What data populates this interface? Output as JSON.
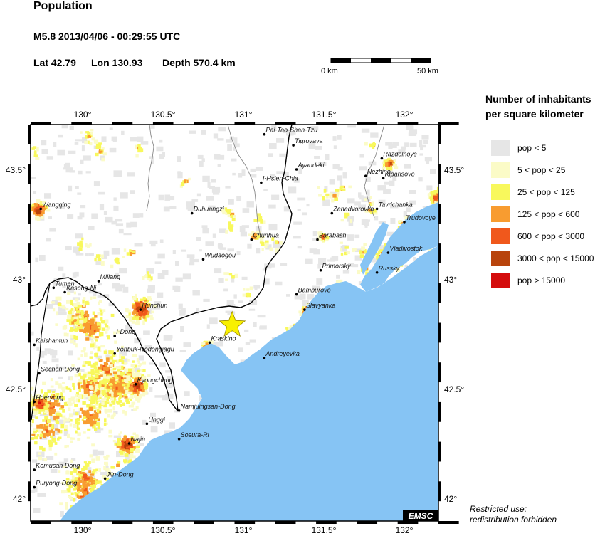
{
  "header": {
    "title": "Population",
    "event": "M5.8  2013/04/06 - 00:29:55 UTC",
    "lat": "Lat 42.79",
    "lon": "Lon 130.93",
    "depth": "Depth 570.4 km"
  },
  "scale_bar": {
    "left_label": "0 km",
    "right_label": "50 km"
  },
  "axes": {
    "lon_ticks": [
      "130°",
      "130.5°",
      "131°",
      "131.5°",
      "132°"
    ],
    "lat_ticks": [
      "43.5°",
      "43°",
      "42.5°",
      "42°"
    ]
  },
  "epicenter": {
    "lat": 42.79,
    "lon": 130.93,
    "marker": "star-icon",
    "color": "#f8f000"
  },
  "colors": {
    "sea": "#86c4f4",
    "land": "#ffffff",
    "border": "#000000",
    "river": "#888888"
  },
  "places": [
    {
      "name": "Pai-Tao-Shan-Tzu",
      "lon": 131.13,
      "lat": 43.66
    },
    {
      "name": "Tigrovaya",
      "lon": 131.31,
      "lat": 43.61
    },
    {
      "name": "Razdolnoye",
      "lon": 131.86,
      "lat": 43.55
    },
    {
      "name": "Ayandeki",
      "lon": 131.33,
      "lat": 43.5
    },
    {
      "name": "I-Hsien-Chia",
      "lon": 131.11,
      "lat": 43.44
    },
    {
      "name": "Nezhino",
      "lon": 131.76,
      "lat": 43.47
    },
    {
      "name": "Kiparisovo",
      "lon": 131.87,
      "lat": 43.46
    },
    {
      "name": "Wangqing",
      "lon": 129.74,
      "lat": 43.32
    },
    {
      "name": "Duhuangzi",
      "lon": 130.68,
      "lat": 43.3
    },
    {
      "name": "Zanadvorovka",
      "lon": 131.55,
      "lat": 43.3
    },
    {
      "name": "Tavrichanka",
      "lon": 131.83,
      "lat": 43.32
    },
    {
      "name": "Trudovoye",
      "lon": 132.0,
      "lat": 43.26
    },
    {
      "name": "Chunhua",
      "lon": 131.05,
      "lat": 43.18
    },
    {
      "name": "Barabash",
      "lon": 131.46,
      "lat": 43.18
    },
    {
      "name": "Vladivostok",
      "lon": 131.9,
      "lat": 43.12
    },
    {
      "name": "Wudaogou",
      "lon": 130.75,
      "lat": 43.09
    },
    {
      "name": "Primorsky",
      "lon": 131.48,
      "lat": 43.04
    },
    {
      "name": "Russky",
      "lon": 131.83,
      "lat": 43.03
    },
    {
      "name": "Mijiang",
      "lon": 130.1,
      "lat": 42.99
    },
    {
      "name": "Tumen",
      "lon": 129.82,
      "lat": 42.96
    },
    {
      "name": "Kasong-Ni",
      "lon": 129.89,
      "lat": 42.94
    },
    {
      "name": "Bamburovo",
      "lon": 131.33,
      "lat": 42.93
    },
    {
      "name": "Hunchun",
      "lon": 130.36,
      "lat": 42.86
    },
    {
      "name": "Slavyanka",
      "lon": 131.38,
      "lat": 42.86
    },
    {
      "name": "I-Dong",
      "lon": 130.2,
      "lat": 42.74
    },
    {
      "name": "Kraskino",
      "lon": 130.79,
      "lat": 42.71
    },
    {
      "name": "Kaishantun",
      "lon": 129.7,
      "lat": 42.7
    },
    {
      "name": "Yonbuk-Nodongjagu",
      "lon": 130.2,
      "lat": 42.66
    },
    {
      "name": "Andreyevka",
      "lon": 131.13,
      "lat": 42.64
    },
    {
      "name": "Sechon-Dong",
      "lon": 129.73,
      "lat": 42.57
    },
    {
      "name": "Kyongchung",
      "lon": 130.33,
      "lat": 42.52
    },
    {
      "name": "Hoeryong",
      "lon": 129.7,
      "lat": 42.44
    },
    {
      "name": "Namjuingsan-Dong",
      "lon": 130.6,
      "lat": 42.4
    },
    {
      "name": "Unggi",
      "lon": 130.4,
      "lat": 42.34
    },
    {
      "name": "Sosura-Ri",
      "lon": 130.6,
      "lat": 42.27
    },
    {
      "name": "Najin",
      "lon": 130.29,
      "lat": 42.25
    },
    {
      "name": "Komusan Dong",
      "lon": 129.7,
      "lat": 42.13
    },
    {
      "name": "Jiin-Dong",
      "lon": 130.14,
      "lat": 42.09
    },
    {
      "name": "Puryong-Dong",
      "lon": 129.7,
      "lat": 42.05
    }
  ],
  "legend": {
    "title_line1": "Number of inhabitants",
    "title_line2": "per square kilometer",
    "items": [
      {
        "label": "pop < 5",
        "color": "#e6e6e6"
      },
      {
        "label": "5 < pop < 25",
        "color": "#fbfbc7"
      },
      {
        "label": "25 < pop < 125",
        "color": "#f8f85c"
      },
      {
        "label": "125 < pop < 600",
        "color": "#f89c30"
      },
      {
        "label": "600 < pop < 3000",
        "color": "#f0581c"
      },
      {
        "label": "3000 < pop < 15000",
        "color": "#b8440c"
      },
      {
        "label": "pop > 15000",
        "color": "#d40c0c"
      }
    ]
  },
  "badge": "EMSC",
  "restricted_line1": "Restricted use:",
  "restricted_line2": "redistribution forbidden"
}
